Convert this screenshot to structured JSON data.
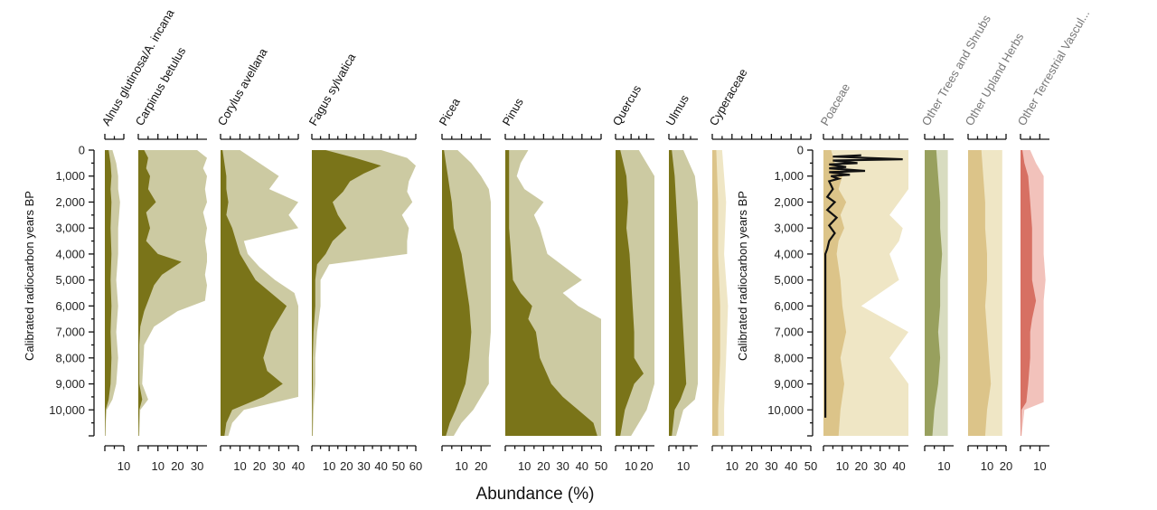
{
  "chart_data": {
    "type": "area",
    "title": "",
    "xlabel": "Abundance (%)",
    "ylabel": "Calibrated radiocarbon years BP",
    "ylim": [
      0,
      11000
    ],
    "yticks": [
      0,
      1000,
      2000,
      3000,
      4000,
      5000,
      6000,
      7000,
      8000,
      9000,
      10000
    ],
    "ytick_labels": [
      "0",
      "1,000",
      "2,000",
      "3,000",
      "4,000",
      "5,000",
      "6,000",
      "7,000",
      "8,000",
      "9,000",
      "10,000"
    ],
    "colors": {
      "olive_dark": "#7a7419",
      "olive_light": "#cccaa2",
      "sand_dark": "#dcc489",
      "sand_light": "#efe6c5",
      "sage_dark": "#98a05e",
      "sage_light": "#d8dcc0",
      "red_dark": "#d77063",
      "red_light": "#f2c2bb",
      "curve": "#111111"
    },
    "panels": [
      {
        "name": "Alnus glutinosa/A. incana",
        "xmax": 10,
        "xticks": [
          10
        ],
        "tick_labels": [
          "10"
        ],
        "scheme": "olive",
        "grey_label": false,
        "depths": [
          0,
          500,
          1000,
          1500,
          2000,
          3000,
          4000,
          5000,
          6000,
          7000,
          8000,
          9000,
          9600,
          10000,
          10500,
          11000
        ],
        "values": [
          2,
          3,
          3.5,
          3,
          3.5,
          3,
          3.5,
          3,
          3.5,
          3,
          3.5,
          3,
          2,
          0.5,
          0.3,
          0.2
        ],
        "exag": [
          4,
          6,
          7,
          7,
          8,
          7,
          7,
          6,
          7,
          6,
          7,
          6,
          4,
          1,
          0.5,
          0.3
        ]
      },
      {
        "name": "Carpinus betulus",
        "xmax": 35,
        "xticks": [
          10,
          20,
          30
        ],
        "tick_labels": [
          "10",
          "20",
          "30"
        ],
        "scheme": "olive",
        "grey_label": false,
        "depths": [
          0,
          300,
          700,
          1000,
          1500,
          2000,
          2400,
          3000,
          3500,
          4000,
          4300,
          4800,
          5200,
          5800,
          6200,
          6800,
          7500,
          9000,
          9600,
          10000,
          11000
        ],
        "values": [
          3,
          5,
          4,
          6,
          5,
          9,
          4,
          6,
          4,
          10,
          22,
          12,
          8,
          5,
          3,
          1,
          0.5,
          0.5,
          2,
          0.5,
          0.2
        ],
        "exag": [
          30,
          35,
          33,
          35,
          34,
          35,
          33,
          35,
          34,
          35,
          35,
          34,
          35,
          34,
          20,
          8,
          3,
          2,
          5,
          1,
          0.5
        ]
      },
      {
        "name": "Corylus avellana",
        "xmax": 40,
        "xticks": [
          10,
          20,
          30,
          40
        ],
        "tick_labels": [
          "10",
          "20",
          "30",
          "40"
        ],
        "scheme": "olive",
        "grey_label": false,
        "depths": [
          0,
          500,
          1000,
          1500,
          2000,
          2500,
          3000,
          3500,
          4000,
          4500,
          5000,
          5500,
          6000,
          6500,
          7000,
          7500,
          8000,
          8500,
          9000,
          9500,
          10000,
          10500,
          11000
        ],
        "values": [
          1,
          2,
          3,
          3,
          4,
          3,
          6,
          8,
          10,
          14,
          18,
          26,
          34,
          30,
          26,
          24,
          22,
          24,
          32,
          22,
          6,
          3,
          2
        ],
        "exag": [
          10,
          20,
          30,
          25,
          40,
          35,
          40,
          12,
          14,
          20,
          28,
          38,
          40,
          40,
          40,
          40,
          40,
          40,
          40,
          40,
          12,
          6,
          4
        ]
      },
      {
        "name": "Fagus sylvatica",
        "xmax": 60,
        "xticks": [
          10,
          20,
          30,
          40,
          50,
          60
        ],
        "tick_labels": [
          "10",
          "20",
          "30",
          "40",
          "50",
          "60"
        ],
        "scheme": "olive",
        "grey_label": false,
        "depths": [
          0,
          300,
          600,
          900,
          1200,
          1600,
          2000,
          2500,
          3000,
          3500,
          4000,
          4400,
          5000,
          6000,
          7000,
          8000,
          9000,
          10000,
          11000
        ],
        "values": [
          8,
          25,
          40,
          30,
          22,
          18,
          12,
          15,
          20,
          12,
          8,
          3,
          2,
          2,
          1,
          0.5,
          0.5,
          0.3,
          0.2
        ],
        "exag": [
          40,
          55,
          60,
          58,
          56,
          55,
          58,
          52,
          56,
          55,
          55,
          10,
          5,
          5,
          3,
          2,
          2,
          1,
          0.5
        ]
      },
      {
        "name": "Picea",
        "xmax": 25,
        "xticks": [
          10,
          20
        ],
        "tick_labels": [
          "10",
          "20"
        ],
        "scheme": "olive",
        "grey_label": false,
        "depths": [
          0,
          500,
          1000,
          1500,
          2000,
          3000,
          4000,
          5000,
          6000,
          7000,
          8000,
          9000,
          10000,
          10500,
          11000
        ],
        "values": [
          1,
          2,
          3,
          4,
          5,
          6,
          10,
          12,
          14,
          15,
          14,
          12,
          7,
          4,
          2
        ],
        "exag": [
          8,
          15,
          20,
          24,
          25,
          25,
          25,
          25,
          25,
          25,
          24,
          24,
          16,
          10,
          6
        ]
      },
      {
        "name": "Pinus",
        "xmax": 50,
        "xticks": [
          10,
          20,
          30,
          40,
          50
        ],
        "tick_labels": [
          "10",
          "20",
          "30",
          "40",
          "50"
        ],
        "scheme": "olive",
        "grey_label": false,
        "depths": [
          0,
          500,
          1000,
          1500,
          2000,
          2500,
          3000,
          4000,
          5000,
          5500,
          6000,
          6500,
          7000,
          8000,
          9000,
          9500,
          10000,
          10500,
          11000
        ],
        "values": [
          2,
          2,
          2,
          2,
          2,
          2,
          2,
          3,
          4,
          8,
          14,
          12,
          16,
          18,
          24,
          30,
          38,
          46,
          48
        ],
        "exag": [
          12,
          8,
          6,
          10,
          20,
          15,
          18,
          22,
          40,
          30,
          38,
          50,
          50,
          50,
          50,
          50,
          50,
          50,
          50
        ]
      },
      {
        "name": "Quercus",
        "xmax": 25,
        "xticks": [
          10,
          20
        ],
        "tick_labels": [
          "10",
          "20"
        ],
        "scheme": "olive",
        "grey_label": false,
        "depths": [
          0,
          500,
          1000,
          2000,
          3000,
          4000,
          5000,
          6000,
          7000,
          8000,
          8600,
          9000,
          10000,
          11000
        ],
        "values": [
          3,
          5,
          7,
          8,
          7,
          9,
          10,
          11,
          12,
          12,
          18,
          12,
          6,
          3
        ],
        "exag": [
          15,
          20,
          25,
          25,
          25,
          25,
          25,
          25,
          25,
          25,
          25,
          25,
          20,
          10
        ]
      },
      {
        "name": "Ulmus",
        "xmax": 20,
        "xticks": [
          10
        ],
        "tick_labels": [
          "10"
        ],
        "scheme": "olive",
        "grey_label": false,
        "depths": [
          0,
          500,
          1000,
          2000,
          3000,
          4000,
          5000,
          6000,
          7000,
          8000,
          9000,
          9600,
          10000,
          11000
        ],
        "values": [
          2,
          3,
          4,
          5,
          6,
          7,
          8,
          9,
          10,
          11,
          12,
          8,
          4,
          2
        ],
        "exag": [
          10,
          14,
          18,
          20,
          20,
          20,
          20,
          20,
          20,
          20,
          20,
          18,
          10,
          5
        ]
      },
      {
        "name": "Cyperaceae",
        "xmax": 50,
        "xticks": [
          10,
          20,
          30,
          40,
          50
        ],
        "tick_labels": [
          "10",
          "20",
          "30",
          "40",
          "50"
        ],
        "scheme": "sand",
        "grey_label": false,
        "depths": [
          0,
          2000,
          4000,
          6000,
          8000,
          10000,
          11000
        ],
        "values": [
          2,
          3,
          3,
          4,
          4,
          3,
          3
        ],
        "exag": [
          5,
          7,
          6,
          8,
          7,
          6,
          6
        ]
      },
      {
        "name": "Poaceae",
        "xmax": 45,
        "xticks": [
          10,
          20,
          30,
          40
        ],
        "tick_labels": [
          "10",
          "20",
          "30",
          "40"
        ],
        "scheme": "sand",
        "grey_label": true,
        "depths": [
          0,
          500,
          1000,
          1500,
          2000,
          2500,
          3000,
          3500,
          4000,
          5000,
          6000,
          7000,
          8000,
          9000,
          10000,
          11000
        ],
        "values": [
          4,
          6,
          10,
          8,
          12,
          9,
          11,
          8,
          7,
          9,
          10,
          12,
          9,
          11,
          9,
          8
        ],
        "exag": [
          45,
          45,
          45,
          45,
          40,
          35,
          42,
          40,
          35,
          40,
          20,
          45,
          35,
          45,
          45,
          45
        ],
        "curve_depths": [
          200,
          250,
          350,
          400,
          500,
          550,
          650,
          700,
          800,
          850,
          950,
          1000,
          1100,
          1200,
          1500,
          1800,
          2000,
          2300,
          2600,
          2900,
          3200,
          3500,
          3800,
          4000,
          10300
        ],
        "curve_values": [
          20,
          5,
          42,
          5,
          18,
          3,
          12,
          3,
          22,
          3,
          14,
          4,
          8,
          3,
          5,
          2,
          6,
          2,
          7,
          3,
          6,
          3,
          2,
          1,
          1
        ]
      },
      {
        "name": "Other Trees and Shrubs",
        "xmax": 15,
        "xticks": [
          10
        ],
        "tick_labels": [
          "10"
        ],
        "scheme": "sage",
        "grey_label": true,
        "depths": [
          0,
          1000,
          2000,
          3000,
          4000,
          5000,
          6000,
          7000,
          8000,
          9000,
          10000,
          11000
        ],
        "values": [
          6,
          7,
          8,
          8,
          9,
          8,
          8,
          7,
          8,
          7,
          5,
          4
        ],
        "exag": [
          12,
          12,
          12,
          12,
          12,
          12,
          12,
          12,
          12,
          12,
          12,
          12
        ]
      },
      {
        "name": "Other Upland Herbs",
        "xmax": 20,
        "xticks": [
          10,
          20
        ],
        "tick_labels": [
          "10",
          "20"
        ],
        "scheme": "sand",
        "grey_label": true,
        "depths": [
          0,
          1000,
          2000,
          3000,
          4000,
          5000,
          6000,
          7000,
          8000,
          9000,
          10000,
          11000
        ],
        "values": [
          7,
          8,
          9,
          9,
          10,
          10,
          9,
          10,
          11,
          12,
          10,
          9
        ],
        "exag": [
          18,
          18,
          18,
          18,
          18,
          18,
          18,
          18,
          18,
          18,
          18,
          18
        ]
      },
      {
        "name": "Other Terrestrial Vascul...",
        "xmax": 15,
        "xticks": [
          10
        ],
        "tick_labels": [
          "10"
        ],
        "scheme": "red",
        "grey_label": true,
        "depths": [
          0,
          500,
          1000,
          2000,
          3000,
          4000,
          5000,
          5800,
          6500,
          7000,
          8000,
          9000,
          9700,
          10000,
          11000
        ],
        "values": [
          1,
          2,
          4,
          5,
          6,
          6,
          6,
          8,
          6,
          5,
          5,
          4,
          3,
          0.5,
          0.2
        ],
        "exag": [
          5,
          8,
          12,
          12,
          12,
          12,
          13,
          12,
          12,
          12,
          12,
          12,
          12,
          2,
          0.5
        ]
      }
    ]
  }
}
